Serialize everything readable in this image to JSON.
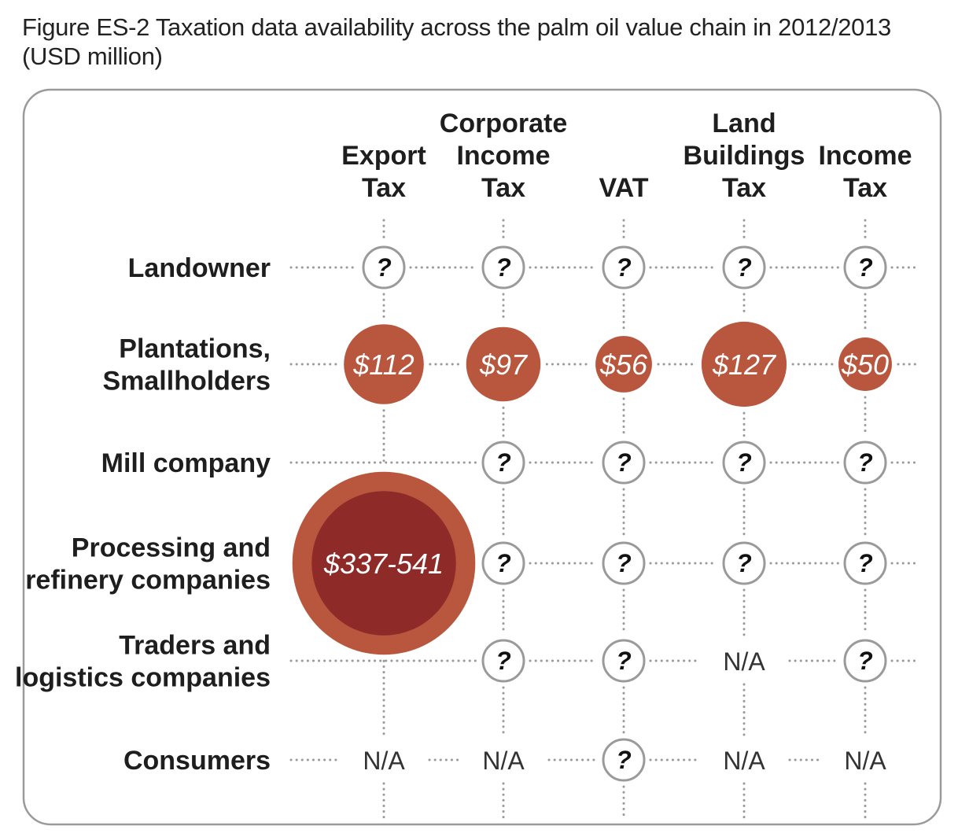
{
  "caption": "Figure ES-2 Taxation data availability across the palm oil value chain in 2012/2013 (USD million)",
  "columns": [
    {
      "label_lines": [
        "Export",
        "Tax"
      ]
    },
    {
      "label_lines": [
        "Corporate",
        "Income",
        "Tax"
      ]
    },
    {
      "label_lines": [
        "VAT"
      ]
    },
    {
      "label_lines": [
        "Land",
        "Buildings",
        "Tax"
      ]
    },
    {
      "label_lines": [
        "Income",
        "Tax"
      ]
    }
  ],
  "rows": [
    {
      "label_lines": [
        "Landowner"
      ]
    },
    {
      "label_lines": [
        "Plantations,",
        "Smallholders"
      ]
    },
    {
      "label_lines": [
        "Mill company"
      ]
    },
    {
      "label_lines": [
        "Processing and",
        "refinery companies"
      ]
    },
    {
      "label_lines": [
        "Traders and",
        "logistics companies"
      ]
    },
    {
      "label_lines": [
        "Consumers"
      ]
    }
  ],
  "cells": [
    [
      {
        "type": "unknown",
        "text": "?"
      },
      {
        "type": "unknown",
        "text": "?"
      },
      {
        "type": "unknown",
        "text": "?"
      },
      {
        "type": "unknown",
        "text": "?"
      },
      {
        "type": "unknown",
        "text": "?"
      }
    ],
    [
      {
        "type": "value",
        "text": "$112",
        "amount": 112
      },
      {
        "type": "value",
        "text": "$97",
        "amount": 97
      },
      {
        "type": "value",
        "text": "$56",
        "amount": 56
      },
      {
        "type": "value",
        "text": "$127",
        "amount": 127
      },
      {
        "type": "value",
        "text": "$50",
        "amount": 50
      }
    ],
    [
      {
        "type": "none"
      },
      {
        "type": "unknown",
        "text": "?"
      },
      {
        "type": "unknown",
        "text": "?"
      },
      {
        "type": "unknown",
        "text": "?"
      },
      {
        "type": "unknown",
        "text": "?"
      }
    ],
    [
      {
        "type": "range",
        "text": "$337-541",
        "min": 337,
        "max": 541
      },
      {
        "type": "unknown",
        "text": "?"
      },
      {
        "type": "unknown",
        "text": "?"
      },
      {
        "type": "unknown",
        "text": "?"
      },
      {
        "type": "unknown",
        "text": "?"
      }
    ],
    [
      {
        "type": "none"
      },
      {
        "type": "unknown",
        "text": "?"
      },
      {
        "type": "unknown",
        "text": "?"
      },
      {
        "type": "na",
        "text": "N/A"
      },
      {
        "type": "unknown",
        "text": "?"
      }
    ],
    [
      {
        "type": "na",
        "text": "N/A"
      },
      {
        "type": "na",
        "text": "N/A"
      },
      {
        "type": "unknown",
        "text": "?"
      },
      {
        "type": "na",
        "text": "N/A"
      },
      {
        "type": "na",
        "text": "N/A"
      }
    ]
  ],
  "colors": {
    "value_fill": "#b8573e",
    "range_outer": "#b8573e",
    "range_inner": "#8e2b29",
    "grid_dots": "#9a9a9a",
    "frame": "#9a9a9a",
    "text": "#1e1e1e"
  }
}
